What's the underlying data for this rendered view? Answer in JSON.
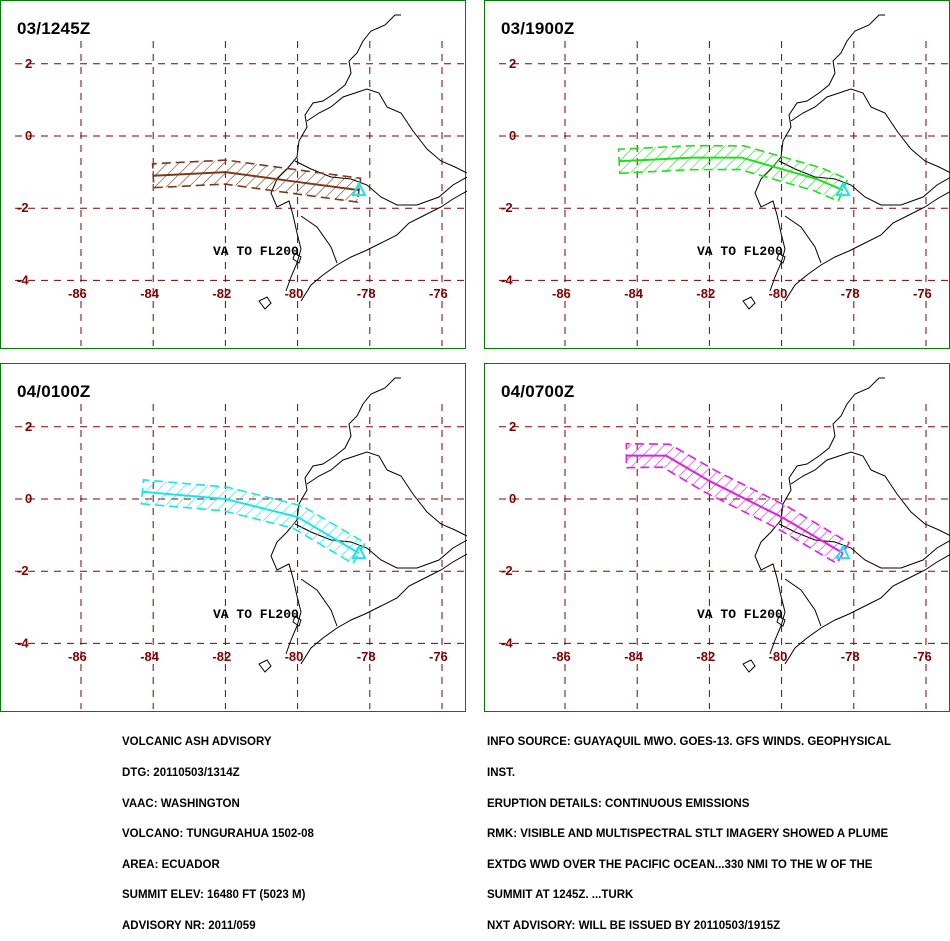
{
  "panels": [
    {
      "time": "03/1245Z",
      "label": "VA TO FL200",
      "color": "#7a3b1c",
      "plume": [
        [
          -84,
          -1.1
        ],
        [
          -82,
          -1.0
        ],
        [
          -79.8,
          -1.3
        ],
        [
          -78.3,
          -1.5
        ]
      ]
    },
    {
      "time": "03/1900Z",
      "label": "VA TO FL200",
      "color": "#1fe01f",
      "plume": [
        [
          -84.5,
          -0.7
        ],
        [
          -82.5,
          -0.6
        ],
        [
          -81.1,
          -0.6
        ],
        [
          -79,
          -1.2
        ],
        [
          -78.3,
          -1.5
        ]
      ]
    },
    {
      "time": "04/0100Z",
      "label": "VA TO FL200",
      "color": "#19e6e6",
      "plume": [
        [
          -84.3,
          0.2
        ],
        [
          -82,
          0
        ],
        [
          -80,
          -0.5
        ],
        [
          -78.3,
          -1.5
        ]
      ]
    },
    {
      "time": "04/0700Z",
      "label": "VA TO FL200",
      "color": "#e020e0",
      "plume": [
        [
          -84.3,
          1.2
        ],
        [
          -83.2,
          1.2
        ],
        [
          -82,
          0.5
        ],
        [
          -80,
          -0.5
        ],
        [
          -78.3,
          -1.5
        ]
      ]
    }
  ],
  "lon_ticks": [
    "-86",
    "-84",
    "-82",
    "-80",
    "-78",
    "-76"
  ],
  "lat_ticks": [
    "2",
    "0",
    "-2",
    "-4"
  ],
  "left_info": [
    "VOLCANIC ASH ADVISORY",
    "DTG: 20110503/1314Z",
    "VAAC: WASHINGTON",
    "VOLCANO: TUNGURAHUA 1502-08",
    "AREA: ECUADOR",
    "SUMMIT ELEV: 16480 FT (5023 M)",
    "ADVISORY NR: 2011/059"
  ],
  "right_info": [
    "INFO SOURCE: GUAYAQUIL MWO. GOES-13. GFS WINDS. GEOPHYSICAL",
    "INST.",
    "ERUPTION DETAILS: CONTINUOUS EMISSIONS",
    "RMK: VISIBLE AND MULTISPECTRAL STLT IMAGERY SHOWED A PLUME",
    "EXTDG WWD OVER THE PACIFIC OCEAN...330 NMI TO THE W OF THE",
    "SUMMIT AT 1245Z. ...TURK",
    "NXT ADVISORY: WILL BE ISSUED BY 20110503/1915Z"
  ],
  "colors": {
    "grid": "#800000",
    "frame": "#008000",
    "coast": "#000000",
    "volcano": "#19e6e6"
  },
  "icons": {
    "volcano": "triangle-marker"
  }
}
